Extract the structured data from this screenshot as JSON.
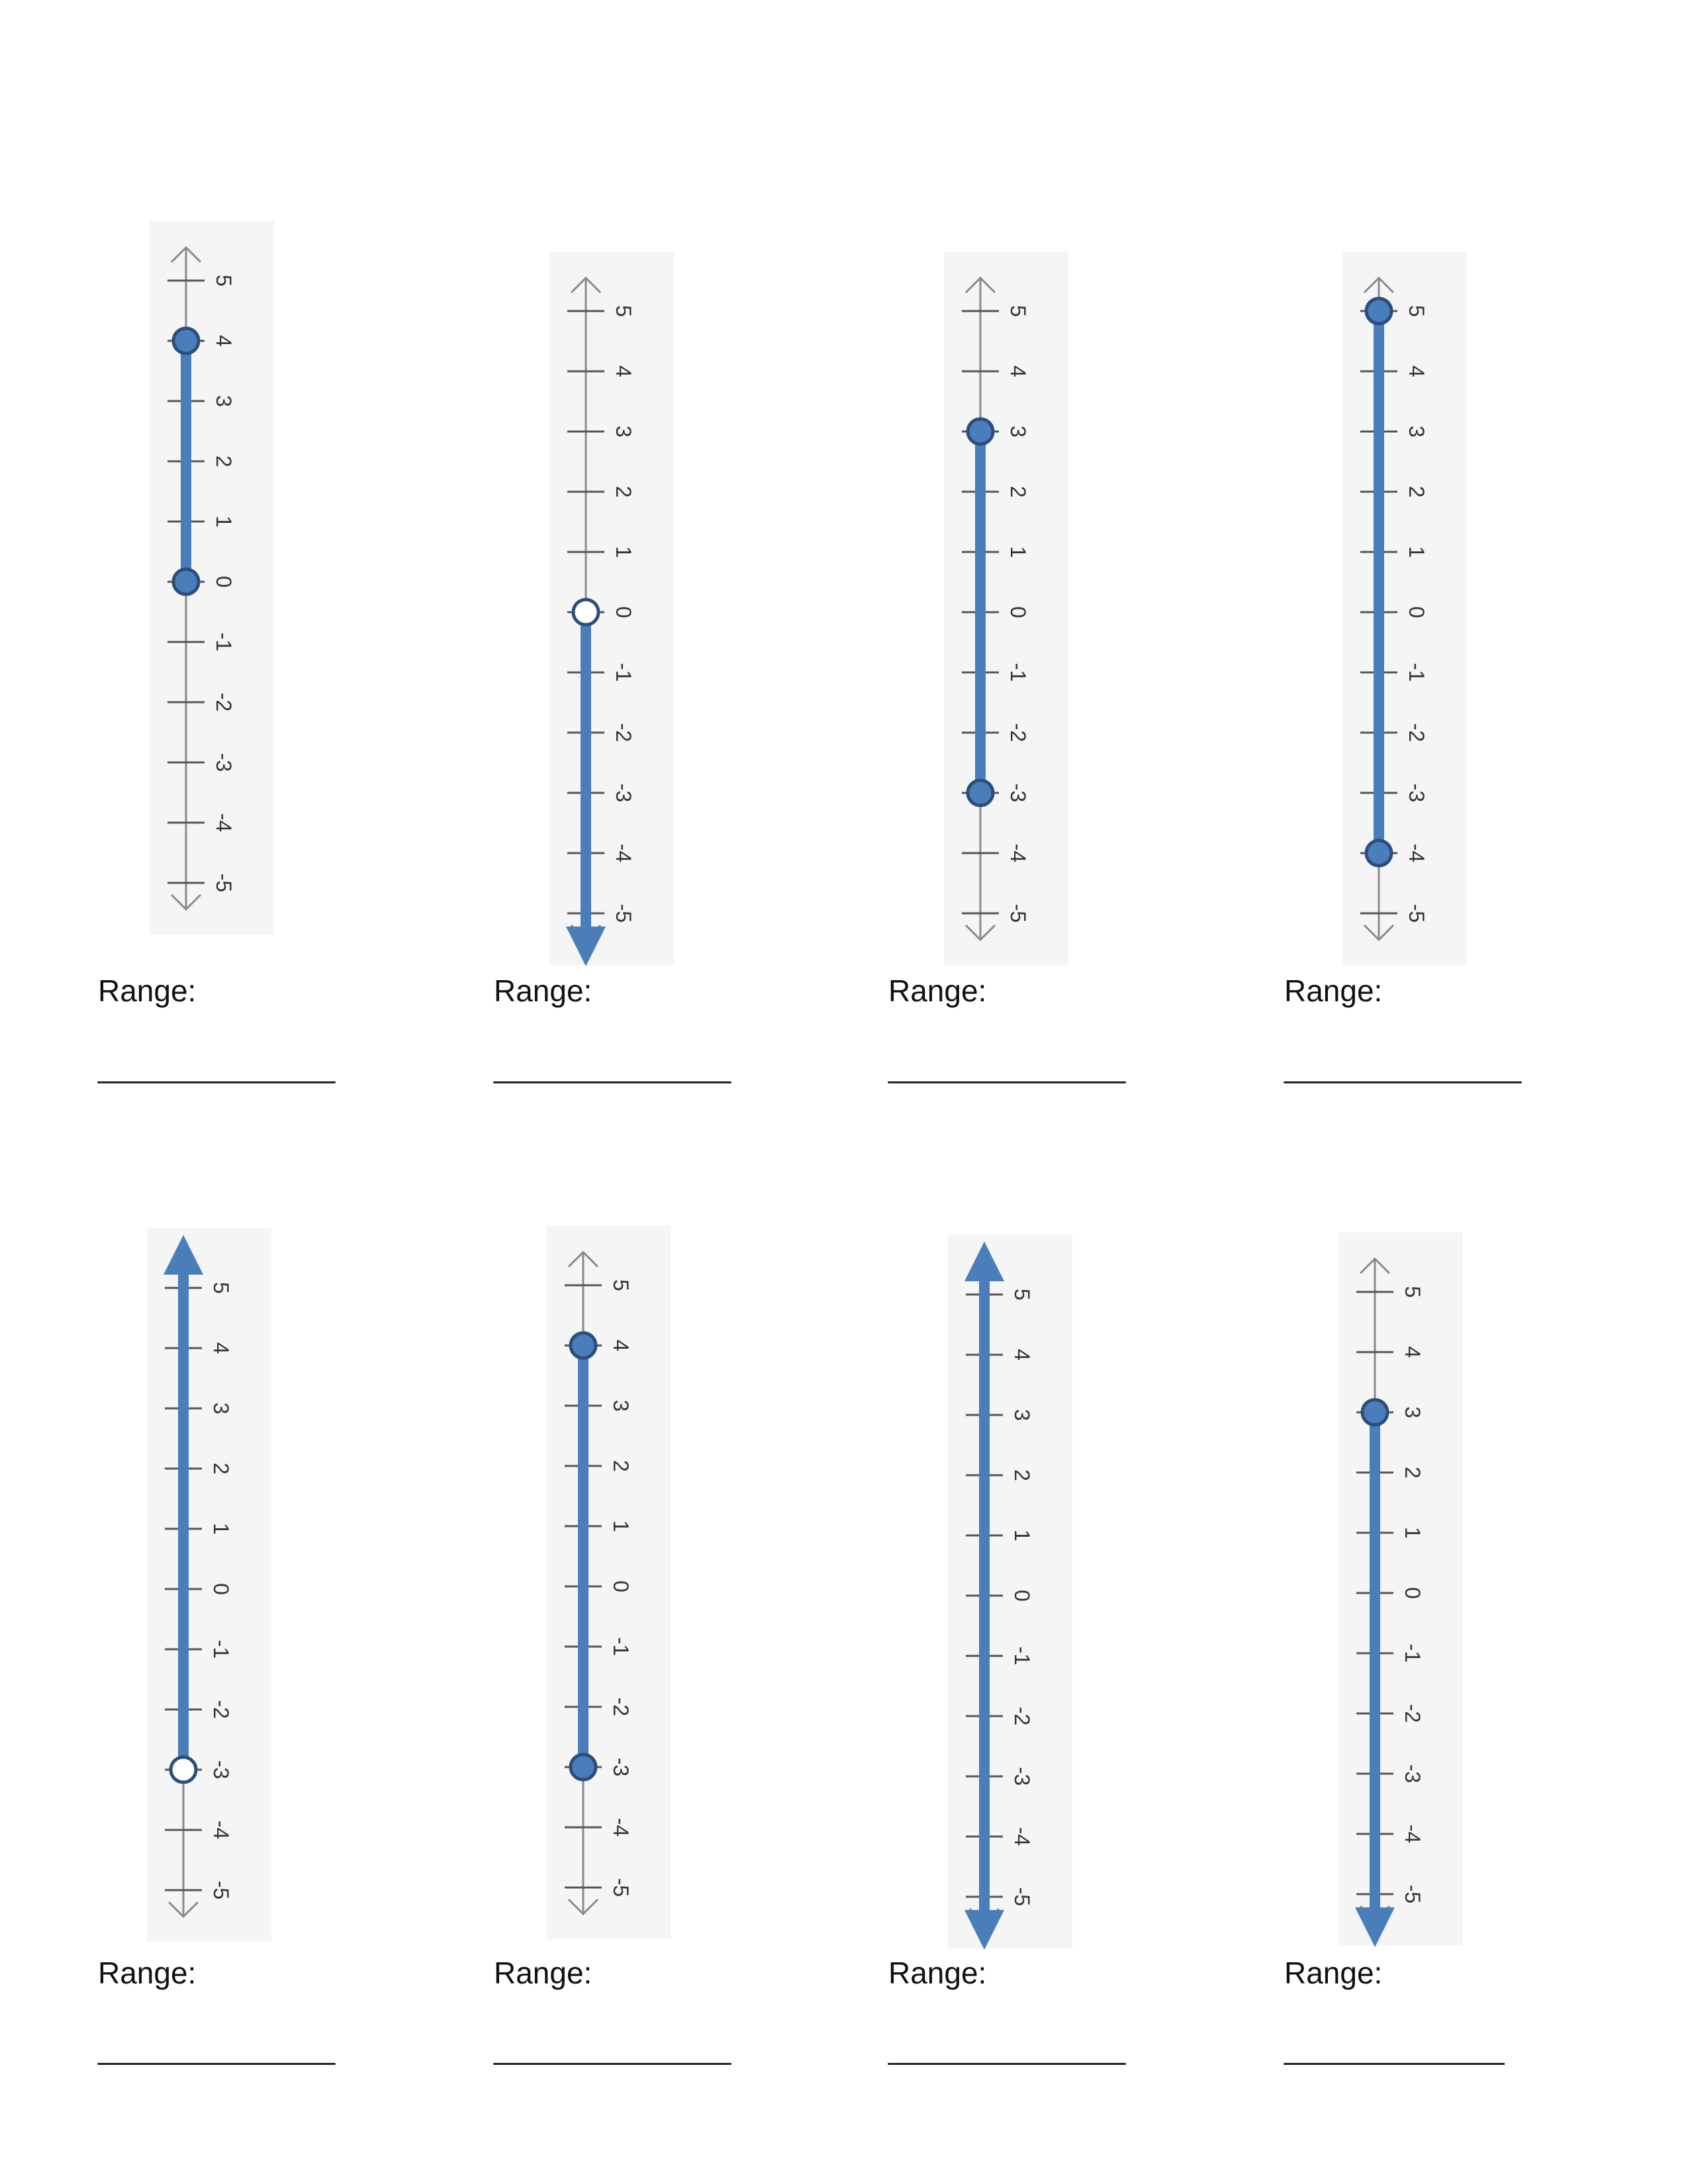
{
  "worksheet": {
    "range_label": "Range:",
    "answer_blank": "______________",
    "answer_blank_short": "_____________"
  },
  "style": {
    "axis_color": "#8a8a8a",
    "graph_color": "#4a7ebb",
    "point_outline_color": "#2c4e7a",
    "panel_color": "#f5f5f5"
  },
  "chart_data": [
    {
      "type": "number-line",
      "axis": [
        -5,
        5
      ],
      "ticks": [
        "-5",
        "-4",
        "-3",
        "-2",
        "-1",
        "0",
        "1",
        "2",
        "3",
        "4",
        "5"
      ],
      "segment": {
        "from": 0,
        "to": 4
      },
      "lower": "closed",
      "upper": "closed"
    },
    {
      "type": "number-line",
      "axis": [
        -5,
        5
      ],
      "ticks": [
        "-5",
        "-4",
        "-3",
        "-2",
        "-1",
        "0",
        "1",
        "2",
        "3",
        "4",
        "5"
      ],
      "segment": {
        "from": null,
        "to": 0
      },
      "lower": "arrow",
      "upper": "open"
    },
    {
      "type": "number-line",
      "axis": [
        -5,
        5
      ],
      "ticks": [
        "-5",
        "-4",
        "-3",
        "-2",
        "-1",
        "0",
        "1",
        "2",
        "3",
        "4",
        "5"
      ],
      "segment": {
        "from": -3,
        "to": 3
      },
      "lower": "closed",
      "upper": "closed"
    },
    {
      "type": "number-line",
      "axis": [
        -5,
        5
      ],
      "ticks": [
        "-5",
        "-4",
        "-3",
        "-2",
        "-1",
        "0",
        "1",
        "2",
        "3",
        "4",
        "5"
      ],
      "segment": {
        "from": -4,
        "to": 5
      },
      "lower": "closed",
      "upper": "closed"
    },
    {
      "type": "number-line",
      "axis": [
        -5,
        5
      ],
      "ticks": [
        "-5",
        "-4",
        "-3",
        "-2",
        "-1",
        "0",
        "1",
        "2",
        "3",
        "4",
        "5"
      ],
      "segment": {
        "from": -3,
        "to": null
      },
      "lower": "open",
      "upper": "arrow"
    },
    {
      "type": "number-line",
      "axis": [
        -5,
        5
      ],
      "ticks": [
        "-5",
        "-4",
        "-3",
        "-2",
        "-1",
        "0",
        "1",
        "2",
        "3",
        "4",
        "5"
      ],
      "segment": {
        "from": -3,
        "to": 4
      },
      "lower": "closed",
      "upper": "closed"
    },
    {
      "type": "number-line",
      "axis": [
        -5,
        5
      ],
      "ticks": [
        "-5",
        "-4",
        "-3",
        "-2",
        "-1",
        "0",
        "1",
        "2",
        "3",
        "4",
        "5"
      ],
      "segment": {
        "from": null,
        "to": null
      },
      "lower": "arrow",
      "upper": "arrow"
    },
    {
      "type": "number-line",
      "axis": [
        -5,
        5
      ],
      "ticks": [
        "-5",
        "-4",
        "-3",
        "-2",
        "-1",
        "0",
        "1",
        "2",
        "3",
        "4",
        "5"
      ],
      "segment": {
        "from": null,
        "to": 3
      },
      "lower": "arrow",
      "upper": "closed"
    }
  ]
}
